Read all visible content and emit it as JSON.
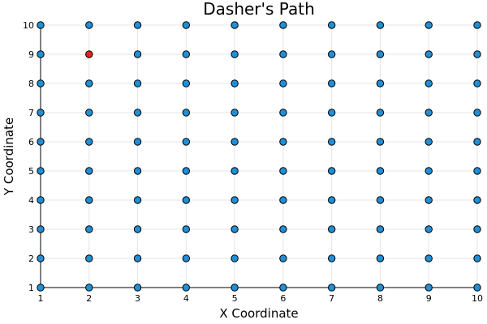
{
  "chart_data": {
    "type": "scatter",
    "title": "Dasher's Path",
    "xlabel": "X Coordinate",
    "ylabel": "Y Coordinate",
    "xlim": [
      1,
      10
    ],
    "ylim": [
      1,
      10
    ],
    "xticks": [
      "1",
      "2",
      "3",
      "4",
      "5",
      "6",
      "7",
      "8",
      "9",
      "10"
    ],
    "yticks": [
      "1",
      "2",
      "3",
      "4",
      "5",
      "6",
      "7",
      "8",
      "9",
      "10"
    ],
    "grid": true,
    "legend": "none",
    "series": [
      {
        "color": "#1f8fd6",
        "points": [
          [
            1,
            1
          ],
          [
            2,
            1
          ],
          [
            3,
            1
          ],
          [
            4,
            1
          ],
          [
            5,
            1
          ],
          [
            6,
            1
          ],
          [
            7,
            1
          ],
          [
            8,
            1
          ],
          [
            9,
            1
          ],
          [
            10,
            1
          ],
          [
            1,
            2
          ],
          [
            2,
            2
          ],
          [
            3,
            2
          ],
          [
            4,
            2
          ],
          [
            5,
            2
          ],
          [
            6,
            2
          ],
          [
            7,
            2
          ],
          [
            8,
            2
          ],
          [
            9,
            2
          ],
          [
            10,
            2
          ],
          [
            1,
            3
          ],
          [
            2,
            3
          ],
          [
            3,
            3
          ],
          [
            4,
            3
          ],
          [
            5,
            3
          ],
          [
            6,
            3
          ],
          [
            7,
            3
          ],
          [
            8,
            3
          ],
          [
            9,
            3
          ],
          [
            10,
            3
          ],
          [
            1,
            4
          ],
          [
            2,
            4
          ],
          [
            3,
            4
          ],
          [
            4,
            4
          ],
          [
            5,
            4
          ],
          [
            6,
            4
          ],
          [
            7,
            4
          ],
          [
            8,
            4
          ],
          [
            9,
            4
          ],
          [
            10,
            4
          ],
          [
            1,
            5
          ],
          [
            2,
            5
          ],
          [
            3,
            5
          ],
          [
            4,
            5
          ],
          [
            5,
            5
          ],
          [
            6,
            5
          ],
          [
            7,
            5
          ],
          [
            8,
            5
          ],
          [
            9,
            5
          ],
          [
            10,
            5
          ],
          [
            1,
            6
          ],
          [
            2,
            6
          ],
          [
            3,
            6
          ],
          [
            4,
            6
          ],
          [
            5,
            6
          ],
          [
            6,
            6
          ],
          [
            7,
            6
          ],
          [
            8,
            6
          ],
          [
            9,
            6
          ],
          [
            10,
            6
          ],
          [
            1,
            7
          ],
          [
            2,
            7
          ],
          [
            3,
            7
          ],
          [
            4,
            7
          ],
          [
            5,
            7
          ],
          [
            6,
            7
          ],
          [
            7,
            7
          ],
          [
            8,
            7
          ],
          [
            9,
            7
          ],
          [
            10,
            7
          ],
          [
            1,
            8
          ],
          [
            2,
            8
          ],
          [
            3,
            8
          ],
          [
            4,
            8
          ],
          [
            5,
            8
          ],
          [
            6,
            8
          ],
          [
            7,
            8
          ],
          [
            8,
            8
          ],
          [
            9,
            8
          ],
          [
            10,
            8
          ],
          [
            1,
            9
          ],
          [
            3,
            9
          ],
          [
            4,
            9
          ],
          [
            5,
            9
          ],
          [
            6,
            9
          ],
          [
            7,
            9
          ],
          [
            8,
            9
          ],
          [
            9,
            9
          ],
          [
            10,
            9
          ],
          [
            1,
            10
          ],
          [
            2,
            10
          ],
          [
            3,
            10
          ],
          [
            4,
            10
          ],
          [
            5,
            10
          ],
          [
            6,
            10
          ],
          [
            7,
            10
          ],
          [
            8,
            10
          ],
          [
            9,
            10
          ],
          [
            10,
            10
          ]
        ]
      },
      {
        "color": "#e0261a",
        "points": [
          [
            2,
            9
          ]
        ]
      }
    ]
  }
}
